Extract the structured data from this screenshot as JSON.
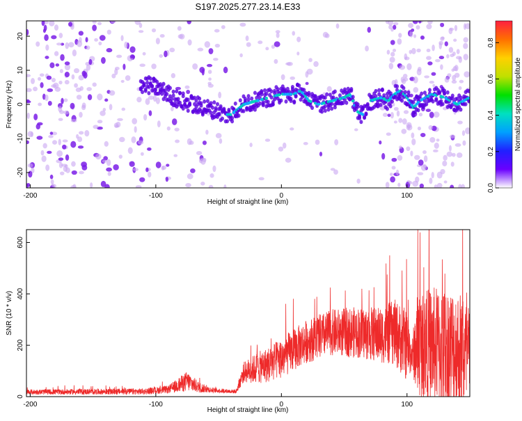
{
  "title": "S197.2025.277.23.14.E33",
  "colors": {
    "axis": "#000000",
    "snr_line": "#ee2a2a",
    "colorbar": [
      "#ffffff",
      "#6a00ff",
      "#2020ff",
      "#00a0ff",
      "#00e0c0",
      "#00e000",
      "#c0e000",
      "#ffd000",
      "#ff7000",
      "#ff2040"
    ]
  },
  "chart_data": [
    {
      "type": "heatmap",
      "name": "spectrogram",
      "title": "S197.2025.277.23.14.E33",
      "xlabel": "Height of straight line (km)",
      "ylabel": "Frequency (Hz)",
      "xlim": [
        -203,
        150
      ],
      "ylim": [
        -24.5,
        24.5
      ],
      "xticks": [
        -200,
        -100,
        0,
        100
      ],
      "yticks": [
        -20,
        -10,
        0,
        10,
        20
      ],
      "colorbar": {
        "label": "Normalized spectral amplitude",
        "range": [
          0.0,
          0.92
        ],
        "ticks": [
          0.0,
          0.2,
          0.4,
          0.6,
          0.8
        ]
      },
      "ridge": {
        "x": [
          -110,
          -100,
          -90,
          -80,
          -70,
          -60,
          -50,
          -45,
          -40,
          -30,
          -20,
          -10,
          0,
          10,
          15,
          18,
          22,
          30,
          40,
          50,
          55,
          60,
          65,
          70,
          80,
          85,
          90,
          95,
          100,
          105,
          110,
          120,
          130,
          140,
          150
        ],
        "y": [
          6,
          5,
          3,
          1,
          0,
          -1,
          -2,
          -3,
          -3,
          0,
          1,
          2,
          3,
          3,
          4,
          3,
          1,
          0,
          1,
          2,
          3,
          -2,
          -3,
          1,
          2,
          1,
          3,
          4,
          2,
          -1,
          1,
          3,
          2,
          0,
          2
        ]
      }
    },
    {
      "type": "line",
      "name": "snr",
      "xlabel": "Height of straight line (km)",
      "ylabel": "SNR (10 * v/v)",
      "xlim": [
        -203,
        150
      ],
      "ylim": [
        0,
        650
      ],
      "xticks": [
        -200,
        -100,
        0,
        100
      ],
      "yticks": [
        0,
        200,
        400,
        600
      ],
      "envelope": {
        "x": [
          -203,
          -110,
          -90,
          -75,
          -65,
          -55,
          -45,
          -36,
          -30,
          -20,
          -10,
          0,
          20,
          40,
          60,
          80,
          90,
          100,
          104,
          108,
          120,
          140,
          150
        ],
        "mean": [
          18,
          20,
          28,
          60,
          35,
          25,
          22,
          20,
          95,
          110,
          125,
          150,
          215,
          250,
          250,
          240,
          250,
          200,
          160,
          200,
          200,
          180,
          140
        ],
        "spread": [
          10,
          12,
          15,
          40,
          20,
          10,
          8,
          8,
          40,
          60,
          70,
          80,
          85,
          90,
          100,
          110,
          130,
          140,
          60,
          200,
          230,
          250,
          220
        ]
      }
    }
  ]
}
